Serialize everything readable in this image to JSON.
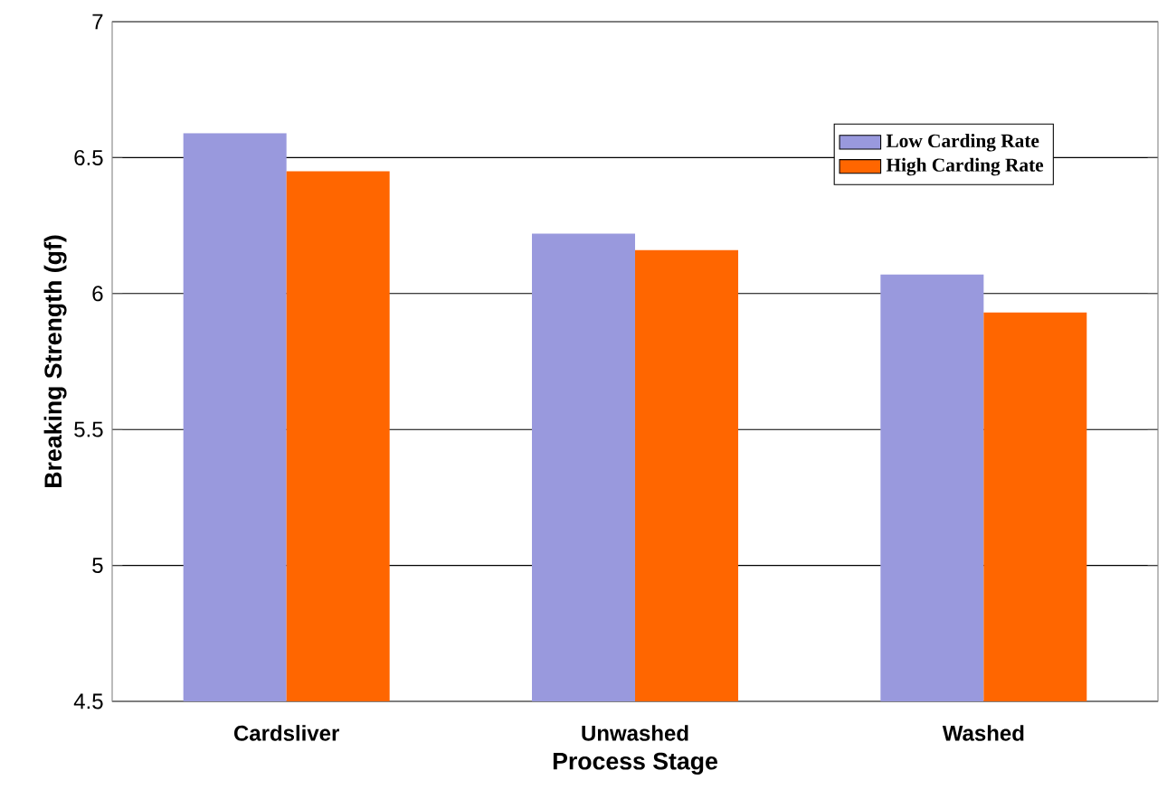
{
  "chart_data": {
    "type": "bar",
    "xlabel": "Process Stage",
    "ylabel": "Breaking Strength (gf)",
    "categories": [
      "Cardsliver",
      "Unwashed",
      "Washed"
    ],
    "series": [
      {
        "name": "Low Carding Rate",
        "color": "#9999dd",
        "values": [
          6.59,
          6.22,
          6.07
        ]
      },
      {
        "name": "High Carding Rate",
        "color": "#ff6600",
        "values": [
          6.45,
          6.16,
          5.93
        ]
      }
    ],
    "ylim": [
      4.5,
      7
    ],
    "yticks": [
      4.5,
      5,
      5.5,
      6,
      6.5,
      7
    ],
    "grid": "y",
    "legend": "top right"
  }
}
